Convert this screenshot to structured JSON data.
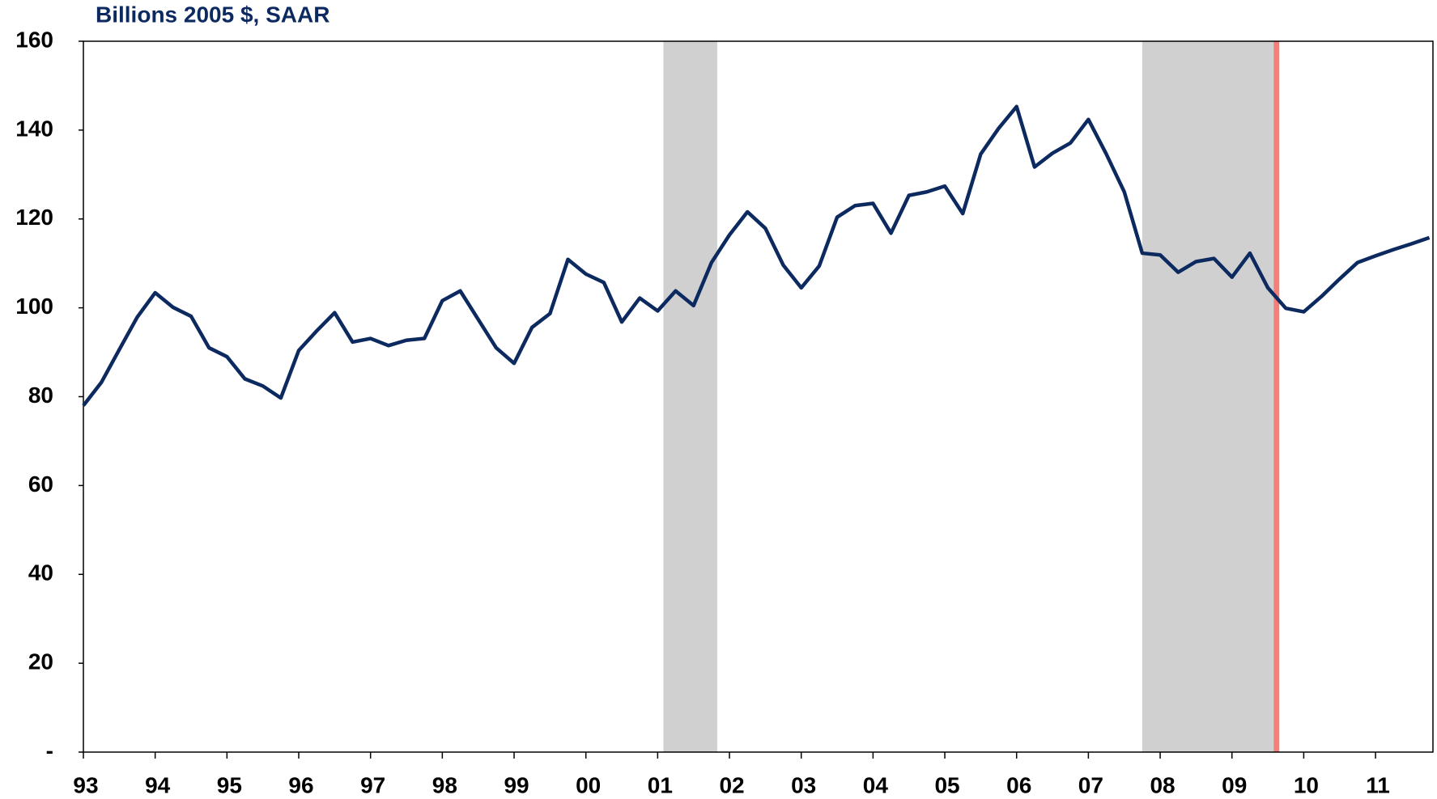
{
  "chart_data": {
    "type": "line",
    "title": "Billions 2005 $, SAAR",
    "x": [
      1993,
      1993.25,
      1993.5,
      1993.75,
      1994,
      1994.25,
      1994.5,
      1994.75,
      1995,
      1995.25,
      1995.5,
      1995.75,
      1996,
      1996.25,
      1996.5,
      1996.75,
      1997,
      1997.25,
      1997.5,
      1997.75,
      1998,
      1998.25,
      1998.5,
      1998.75,
      1999,
      1999.25,
      1999.5,
      1999.75,
      2000,
      2000.25,
      2000.5,
      2000.75,
      2001,
      2001.25,
      2001.5,
      2001.75,
      2002,
      2002.25,
      2002.5,
      2002.75,
      2003,
      2003.25,
      2003.5,
      2003.75,
      2004,
      2004.25,
      2004.5,
      2004.75,
      2005,
      2005.25,
      2005.5,
      2005.75,
      2006,
      2006.25,
      2006.5,
      2006.75,
      2007,
      2007.25,
      2007.5,
      2007.75,
      2008,
      2008.25,
      2008.5,
      2008.75,
      2009,
      2009.25,
      2009.5,
      2009.75,
      2010,
      2010.25,
      2010.5,
      2010.75,
      2011,
      2011.25,
      2011.5,
      2011.75
    ],
    "series": [
      {
        "color": "#0c2a5f",
        "values": [
          78,
          83.2,
          90.6,
          97.9,
          103.4,
          100.1,
          98.1,
          91,
          89,
          84,
          82.4,
          79.7,
          90.4,
          94.8,
          98.9,
          92.3,
          93.1,
          91.5,
          92.7,
          93.1,
          101.6,
          103.8,
          97.4,
          91,
          87.5,
          95.6,
          98.7,
          110.9,
          107.6,
          105.7,
          96.8,
          102.2,
          99.3,
          103.8,
          100.5,
          110.2,
          116.4,
          121.6,
          117.9,
          109.6,
          104.5,
          109.4,
          120.4,
          123,
          123.5,
          116.8,
          125.3,
          126.1,
          127.4,
          121.2,
          134.6,
          140.4,
          145.3,
          131.7,
          134.8,
          137.1,
          142.4,
          134.6,
          126.1,
          112.3,
          111.9,
          108,
          110.4,
          111.1,
          106.9,
          112.3,
          104.5,
          99.9,
          99.1,
          102.6,
          106.5,
          110.2,
          111.7,
          113.1,
          114.4,
          115.8
        ]
      }
    ],
    "xlim": [
      1993,
      2011.8
    ],
    "xticks": [
      {
        "value": 1993,
        "label": "93"
      },
      {
        "value": 1994,
        "label": "94"
      },
      {
        "value": 1995,
        "label": "95"
      },
      {
        "value": 1996,
        "label": "96"
      },
      {
        "value": 1997,
        "label": "97"
      },
      {
        "value": 1998,
        "label": "98"
      },
      {
        "value": 1999,
        "label": "99"
      },
      {
        "value": 2000,
        "label": "00"
      },
      {
        "value": 2001,
        "label": "01"
      },
      {
        "value": 2002,
        "label": "02"
      },
      {
        "value": 2003,
        "label": "03"
      },
      {
        "value": 2004,
        "label": "04"
      },
      {
        "value": 2005,
        "label": "05"
      },
      {
        "value": 2006,
        "label": "06"
      },
      {
        "value": 2007,
        "label": "07"
      },
      {
        "value": 2008,
        "label": "08"
      },
      {
        "value": 2009,
        "label": "09"
      },
      {
        "value": 2010,
        "label": "10"
      },
      {
        "value": 2011,
        "label": "11"
      }
    ],
    "ylim": [
      0,
      160
    ],
    "yticks": [
      {
        "value": 0,
        "label": "-"
      },
      20,
      40,
      60,
      80,
      100,
      120,
      140,
      160
    ],
    "shaded_periods": [
      [
        2001.08,
        2001.83
      ],
      [
        2007.75,
        2009.58
      ]
    ],
    "shade_color": "#d0d0d0",
    "marker_line": 2009.62,
    "marker_color": "#f47f7a",
    "title_color": "#0c2a5f"
  }
}
